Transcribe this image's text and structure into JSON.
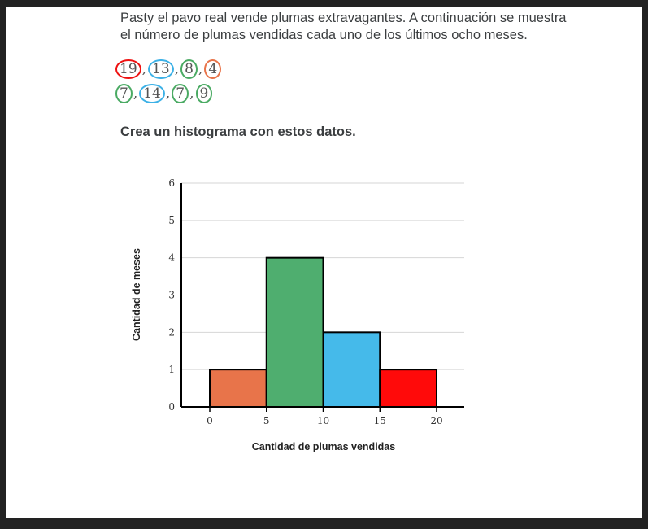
{
  "problem_text": "Pasty el pavo real vende plumas extravagantes. A continuación se muestra el número de plumas vendidas cada uno de los últimos ocho meses.",
  "data_lines": [
    [
      {
        "value": "19",
        "circle": "#ee1111"
      },
      {
        "value": "13",
        "circle": "#3db1e6"
      },
      {
        "value": "8",
        "circle": "#4aaa63"
      },
      {
        "value": "4",
        "circle": "#e8744a"
      }
    ],
    [
      {
        "value": "7",
        "circle": "#4aaa63"
      },
      {
        "value": "14",
        "circle": "#3db1e6"
      },
      {
        "value": "7",
        "circle": "#4aaa63"
      },
      {
        "value": "9",
        "circle": "#4aaa63"
      }
    ]
  ],
  "prompt": "Crea un histograma con estos datos.",
  "chart_data": {
    "type": "bar",
    "title": "",
    "xlabel": "Cantidad de plumas vendidas",
    "ylabel": "Cantidad de meses",
    "xlim": [
      0,
      20
    ],
    "ylim": [
      0,
      6
    ],
    "xticks": [
      0,
      5,
      10,
      15,
      20
    ],
    "yticks": [
      0,
      1,
      2,
      3,
      4,
      5,
      6
    ],
    "grid": true,
    "bins": [
      {
        "range": [
          0,
          5
        ],
        "value": 1,
        "color": "#e8744a"
      },
      {
        "range": [
          5,
          10
        ],
        "value": 4,
        "color": "#4fae6f"
      },
      {
        "range": [
          10,
          15
        ],
        "value": 2,
        "color": "#45baea"
      },
      {
        "range": [
          15,
          20
        ],
        "value": 1,
        "color": "#ff0a0a"
      }
    ]
  }
}
